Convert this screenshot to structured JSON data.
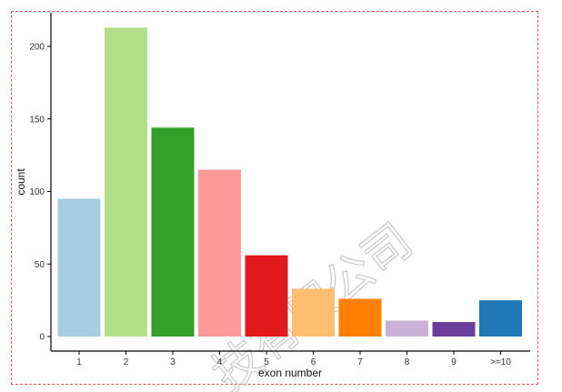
{
  "chart_data": {
    "type": "bar",
    "categories": [
      "1",
      "2",
      "3",
      "4",
      "5",
      "6",
      "7",
      "8",
      "9",
      ">=10"
    ],
    "values": [
      95,
      213,
      144,
      115,
      56,
      33,
      26,
      11,
      10,
      25
    ],
    "colors": [
      "#A6CEE3",
      "#B2DF8A",
      "#33A02C",
      "#FB9A99",
      "#E31A1C",
      "#FDBF6F",
      "#FF7F00",
      "#CAB2D6",
      "#6A3D9A",
      "#1F78B4"
    ],
    "xlabel": "exon number",
    "ylabel": "count",
    "yticks": [
      0,
      50,
      100,
      150,
      200
    ],
    "ylim": [
      0,
      222
    ],
    "grid": false,
    "legend": "none"
  },
  "watermark": "技有限公司"
}
